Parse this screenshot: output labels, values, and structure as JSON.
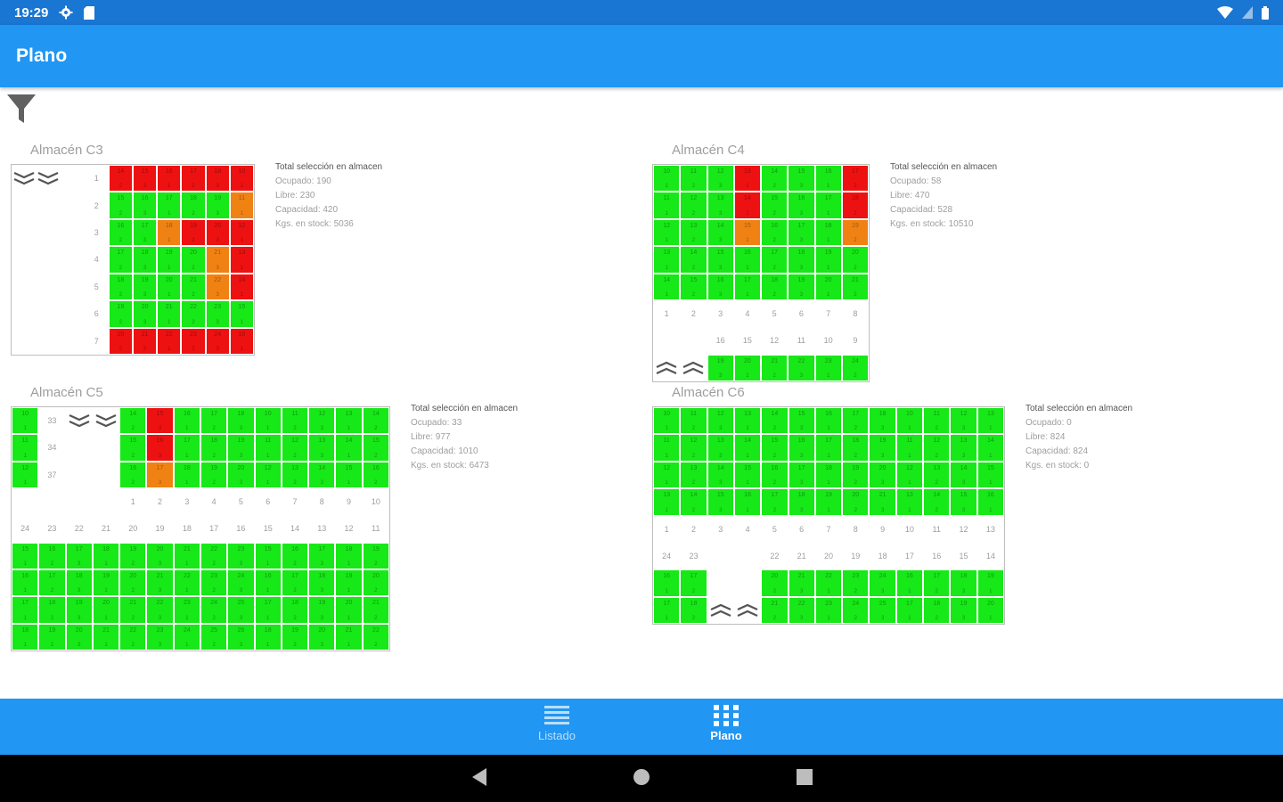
{
  "status_bar": {
    "time": "19:29",
    "colors": {
      "bar": "#1976d2"
    }
  },
  "app_bar": {
    "title": "Plano"
  },
  "filter": {
    "icon": "filter-icon"
  },
  "legend_colors": {
    "green": "#17e817",
    "red": "#ee1111",
    "orange": "#f08214"
  },
  "warehouses": [
    {
      "id": "c3",
      "title": "Almacén C3",
      "cols": 9,
      "rows": [
        "w:chev-down,w:chev-down,w:,l:1,r,r,r,r,r,r",
        "w:,w:,w:,l:2,g,g,g,g,g,o",
        "w:,w:,w:,l:3,g,g,o,r,r,r",
        "w:,w:,w:,l:4,g,g,g,g,o,r",
        "w:,w:,w:,l:5,g,g,g,g,o,r",
        "w:,w:,w:,l:6,g,g,g,g,g,g",
        "w:,w:,w:,l:7,r,r,r,r,r,r"
      ],
      "stats": {
        "heading": "Total selección en almacen",
        "ocupado": "Ocupado: 190",
        "libre": "Libre: 230",
        "capacidad": "Capacidad: 420",
        "kgs": "Kgs. en stock: 5036"
      }
    },
    {
      "id": "c4",
      "title": "Almacén C4",
      "cols": 8,
      "rows": [
        "g,g,g,r,g,g,g,r",
        "g,g,g,r,g,g,g,r",
        "g,g,g,o,g,g,g,o",
        "g,g,g,g,g,g,g,g",
        "g,g,g,g,g,g,g,g",
        "l:1,l:2,l:3,l:4,l:5,l:6,l:7,l:8",
        "w:,w:,l:16,l:15,l:12,l:11,l:10,l:9",
        "w:chev-up,w:chev-up,g,g,g,g,g,g"
      ],
      "stats": {
        "heading": "Total selección en almacen",
        "ocupado": "Ocupado: 58",
        "libre": "Libre: 470",
        "capacidad": "Capacidad: 528",
        "kgs": "Kgs. en stock: 10510"
      }
    },
    {
      "id": "c5",
      "title": "Almacén C5",
      "cols": 14,
      "rows": [
        "g,l:33,w:chev-down,w:chev-down,g,r,g,g,g,g,g,g,g,g",
        "g,l:34,w:,w:,g,r,g,g,g,g,g,g,g,g",
        "g,l:37,w:,w:,g,o,g,g,g,g,g,g,g,g",
        "w:,w:,w:,w:,l:1,l:2,l:3,l:4,l:5,l:6,l:7,l:8,l:9,l:10",
        "l:24,l:23,l:22,l:21,l:20,l:19,l:18,l:17,l:16,l:15,l:14,l:13,l:12,l:11",
        "g,g,g,g,g,g,g,g,g,g,g,g,g,g",
        "g,g,g,g,g,g,g,g,g,g,g,g,g,g",
        "g,g,g,g,g,g,g,g,g,g,g,g,g,g",
        "g,g,g,g,g,g,g,g,g,g,g,g,g,g"
      ],
      "stats": {
        "heading": "Total selección en almacen",
        "ocupado": "Ocupado: 33",
        "libre": "Libre: 977",
        "capacidad": "Capacidad: 1010",
        "kgs": "Kgs. en stock: 6473"
      }
    },
    {
      "id": "c6",
      "title": "Almacén C6",
      "cols": 13,
      "rows": [
        "g,g,g,g,g,g,g,g,g,g,g,g,g",
        "g,g,g,g,g,g,g,g,g,g,g,g,g",
        "g,g,g,g,g,g,g,g,g,g,g,g,g",
        "g,g,g,g,g,g,g,g,g,g,g,g,g",
        "l:1,l:2,l:3,l:4,l:5,l:6,l:7,l:8,l:9,l:10,l:11,l:12,l:13",
        "l:24,l:23,w:,w:,l:22,l:21,l:20,l:19,l:18,l:17,l:16,l:15,l:14",
        "g,g,w:,w:,g,g,g,g,g,g,g,g,g",
        "g,g,w:chev-up,w:chev-up,g,g,g,g,g,g,g,g,g"
      ],
      "stats": {
        "heading": "Total selección en almacen",
        "ocupado": "Ocupado: 0",
        "libre": "Libre: 824",
        "capacidad": "Capacidad: 824",
        "kgs": "Kgs. en stock: 0"
      }
    }
  ],
  "bottom_nav": {
    "items": [
      {
        "label": "Listado",
        "icon": "list-icon",
        "selected": false
      },
      {
        "label": "Plano",
        "icon": "grid-icon",
        "selected": true
      }
    ]
  },
  "system_nav": {
    "back": "back-icon",
    "home": "home-icon",
    "recents": "recents-icon"
  }
}
